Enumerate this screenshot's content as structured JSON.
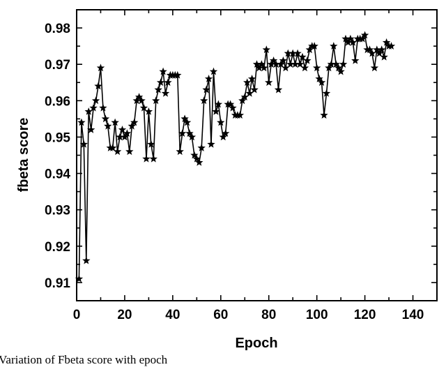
{
  "chart_data": {
    "type": "line",
    "title": "",
    "xlabel": "Epoch",
    "ylabel": "fbeta score",
    "xlim": [
      0,
      150
    ],
    "ylim": [
      0.905,
      0.985
    ],
    "xticks": [
      0,
      20,
      40,
      60,
      80,
      100,
      120,
      140
    ],
    "yticks": [
      0.91,
      0.92,
      0.93,
      0.94,
      0.95,
      0.96,
      0.97,
      0.98
    ],
    "xtick_labels": [
      "0",
      "20",
      "40",
      "60",
      "80",
      "100",
      "120",
      "140"
    ],
    "ytick_labels": [
      "0.91",
      "0.92",
      "0.93",
      "0.94",
      "0.95",
      "0.96",
      "0.97",
      "0.98"
    ],
    "grid": false,
    "legend": "none",
    "marker": "star",
    "color": "#000000",
    "series": [
      {
        "x": [
          1,
          2,
          3,
          4,
          5,
          6,
          7,
          8,
          9,
          10,
          11,
          12,
          13,
          14,
          15,
          16,
          17,
          18,
          19,
          20,
          21,
          22,
          23,
          24,
          25,
          26,
          27,
          28,
          29,
          30,
          31,
          32,
          33,
          34,
          35,
          36,
          37,
          38,
          39,
          40,
          41,
          42,
          43,
          44,
          45,
          46,
          47,
          48,
          49,
          50,
          51,
          52,
          53,
          54,
          55,
          56,
          57,
          58,
          59,
          60,
          61,
          62,
          63,
          64,
          65,
          66,
          67,
          68,
          69,
          70,
          71,
          72,
          73,
          74,
          75,
          76,
          77,
          78,
          79,
          80,
          81,
          82,
          83,
          84,
          85,
          86,
          87,
          88,
          89,
          90,
          91,
          92,
          93,
          94,
          95,
          96,
          97,
          98,
          99,
          100,
          101,
          102,
          103,
          104,
          105,
          106,
          107,
          108,
          109,
          110,
          111,
          112,
          113,
          114,
          115,
          116,
          117,
          118,
          119,
          120,
          121,
          122,
          123,
          124,
          125,
          126,
          127,
          128,
          129,
          130,
          131
        ],
        "y": [
          0.911,
          0.954,
          0.948,
          0.916,
          0.957,
          0.952,
          0.958,
          0.96,
          0.964,
          0.969,
          0.958,
          0.955,
          0.953,
          0.947,
          0.947,
          0.954,
          0.946,
          0.95,
          0.952,
          0.95,
          0.951,
          0.946,
          0.953,
          0.954,
          0.96,
          0.961,
          0.96,
          0.958,
          0.944,
          0.957,
          0.948,
          0.944,
          0.96,
          0.963,
          0.965,
          0.968,
          0.962,
          0.965,
          0.967,
          0.967,
          0.967,
          0.967,
          0.946,
          0.951,
          0.955,
          0.954,
          0.951,
          0.95,
          0.945,
          0.944,
          0.943,
          0.947,
          0.96,
          0.963,
          0.966,
          0.948,
          0.968,
          0.957,
          0.959,
          0.954,
          0.95,
          0.951,
          0.959,
          0.959,
          0.958,
          0.956,
          0.956,
          0.956,
          0.96,
          0.961,
          0.965,
          0.962,
          0.966,
          0.963,
          0.97,
          0.969,
          0.97,
          0.969,
          0.974,
          0.965,
          0.97,
          0.971,
          0.97,
          0.963,
          0.97,
          0.971,
          0.969,
          0.973,
          0.97,
          0.973,
          0.97,
          0.973,
          0.97,
          0.972,
          0.969,
          0.971,
          0.974,
          0.975,
          0.975,
          0.969,
          0.966,
          0.965,
          0.956,
          0.962,
          0.969,
          0.97,
          0.975,
          0.97,
          0.969,
          0.968,
          0.97,
          0.977,
          0.976,
          0.977,
          0.976,
          0.971,
          0.977,
          0.977,
          0.977,
          0.978,
          0.974,
          0.974,
          0.973,
          0.969,
          0.974,
          0.973,
          0.974,
          0.972,
          0.976,
          0.975,
          0.975
        ]
      }
    ]
  },
  "caption": "Variation of Fbeta score with epoch"
}
